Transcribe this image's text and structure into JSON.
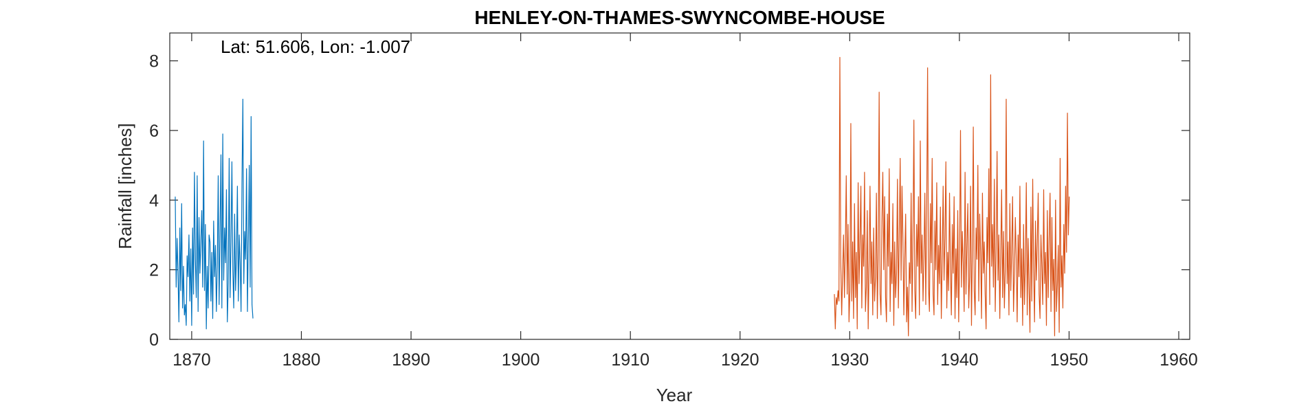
{
  "chart_data": {
    "type": "line",
    "title": "HENLEY-ON-THAMES-SWYNCOMBE-HOUSE",
    "annotation": "Lat: 51.606, Lon: -1.007",
    "xlabel": "Year",
    "ylabel": "Rainfall [inches]",
    "xlim": [
      1868.0,
      1961.0
    ],
    "ylim": [
      0,
      8.8
    ],
    "xticks": [
      1870,
      1880,
      1890,
      1900,
      1910,
      1920,
      1930,
      1940,
      1950,
      1960
    ],
    "yticks": [
      0,
      2,
      4,
      6,
      8
    ],
    "grid": false,
    "colors": [
      "#0072BD",
      "#D95319"
    ],
    "series": [
      {
        "x_start": 1868.5,
        "x_step": 0.0833333,
        "values": [
          4.1,
          1.5,
          2.9,
          1.9,
          0.5,
          3.2,
          1.4,
          3.9,
          0.9,
          2.1,
          0.7,
          1.0,
          0.4,
          2.4,
          1.8,
          3.0,
          1.1,
          2.6,
          0.4,
          3.2,
          1.3,
          4.8,
          2.3,
          1.2,
          4.7,
          0.8,
          3.5,
          1.9,
          2.8,
          3.7,
          1.5,
          5.7,
          1.4,
          3.3,
          0.3,
          2.1,
          0.9,
          3.0,
          2.8,
          1.1,
          2.5,
          0.6,
          3.4,
          1.8,
          2.7,
          0.8,
          2.1,
          4.7,
          1.0,
          3.1,
          5.3,
          0.9,
          5.9,
          1.7,
          3.2,
          2.2,
          4.3,
          0.5,
          1.6,
          5.2,
          1.2,
          2.8,
          5.1,
          2.0,
          0.9,
          3.6,
          1.4,
          2.4,
          4.4,
          1.1,
          3.0,
          2.2,
          0.8,
          4.5,
          6.9,
          1.6,
          3.1,
          2.3,
          4.9,
          0.8,
          2.9,
          5.0,
          1.5,
          6.4,
          1.0,
          0.6
        ]
      },
      {
        "x_start": 1928.6,
        "x_step": 0.0833333,
        "values": [
          1.3,
          0.3,
          1.2,
          1.0,
          1.4,
          1.1,
          8.1,
          2.2,
          0.7,
          1.9,
          3.0,
          1.2,
          2.7,
          4.7,
          1.3,
          3.3,
          0.5,
          1.4,
          6.2,
          1.1,
          2.8,
          0.6,
          3.9,
          1.2,
          2.5,
          0.3,
          4.5,
          1.6,
          2.8,
          4.4,
          0.9,
          3.0,
          2.1,
          4.8,
          0.8,
          1.5,
          3.7,
          0.3,
          2.2,
          4.4,
          1.6,
          2.8,
          0.7,
          3.2,
          1.1,
          1.8,
          4.2,
          0.6,
          2.6,
          7.1,
          1.3,
          0.7,
          3.4,
          4.8,
          2.0,
          4.1,
          1.2,
          0.5,
          3.6,
          2.1,
          4.9,
          0.8,
          2.5,
          1.6,
          3.9,
          0.4,
          2.8,
          1.2,
          1.9,
          4.6,
          0.9,
          3.0,
          5.2,
          1.7,
          4.4,
          2.9,
          0.7,
          2.3,
          3.6,
          0.5,
          1.5,
          0.1,
          2.2,
          1.6,
          4.2,
          0.8,
          2.9,
          6.3,
          1.4,
          0.6,
          3.3,
          2.1,
          4.1,
          0.7,
          5.7,
          1.9,
          3.0,
          1.1,
          2.4,
          4.2,
          1.0,
          3.7,
          7.8,
          1.5,
          0.8,
          3.9,
          2.2,
          5.2,
          1.3,
          0.7,
          3.4,
          2.0,
          4.5,
          1.0,
          2.7,
          1.6,
          3.8,
          0.6,
          2.3,
          4.4,
          1.7,
          2.9,
          5.1,
          0.9,
          2.5,
          1.4,
          4.2,
          2.0,
          0.7,
          3.3,
          1.9,
          4.1,
          0.6,
          2.6,
          1.2,
          3.7,
          0.5,
          2.4,
          6.0,
          1.5,
          3.1,
          2.2,
          0.8,
          4.8,
          1.3,
          2.7,
          3.9,
          0.9,
          1.8,
          4.4,
          0.4,
          2.6,
          6.1,
          1.4,
          0.7,
          3.2,
          2.3,
          5.0,
          1.1,
          3.6,
          2.5,
          0.6,
          4.2,
          1.9,
          2.8,
          1.3,
          0.3,
          3.5,
          2.2,
          4.9,
          1.0,
          7.6,
          2.1,
          3.3,
          1.5,
          4.6,
          0.8,
          2.6,
          5.4,
          1.7,
          3.0,
          0.6,
          2.4,
          4.3,
          1.2,
          3.1,
          0.9,
          2.0,
          6.9,
          1.6,
          2.8,
          0.7,
          3.9,
          1.4,
          2.5,
          4.1,
          0.8,
          1.9,
          3.5,
          2.3,
          0.5,
          3.0,
          1.8,
          4.4,
          1.2,
          2.6,
          0.4,
          3.3,
          1.0,
          2.2,
          4.5,
          0.7,
          2.9,
          1.5,
          0.2,
          3.8,
          1.1,
          4.6,
          2.0,
          0.5,
          3.4,
          1.7,
          2.8,
          4.2,
          1.3,
          0.6,
          3.0,
          2.1,
          1.0,
          4.3,
          1.6,
          2.5,
          0.4,
          3.7,
          1.2,
          2.9,
          4.2,
          0.8,
          3.5,
          1.4,
          2.3,
          0.1,
          4.0,
          0.8,
          1.6,
          2.7,
          0.2,
          5.2,
          1.5,
          2.4,
          0.9,
          3.3,
          1.9,
          4.4,
          2.5,
          6.5,
          3.0,
          4.1
        ]
      }
    ]
  }
}
